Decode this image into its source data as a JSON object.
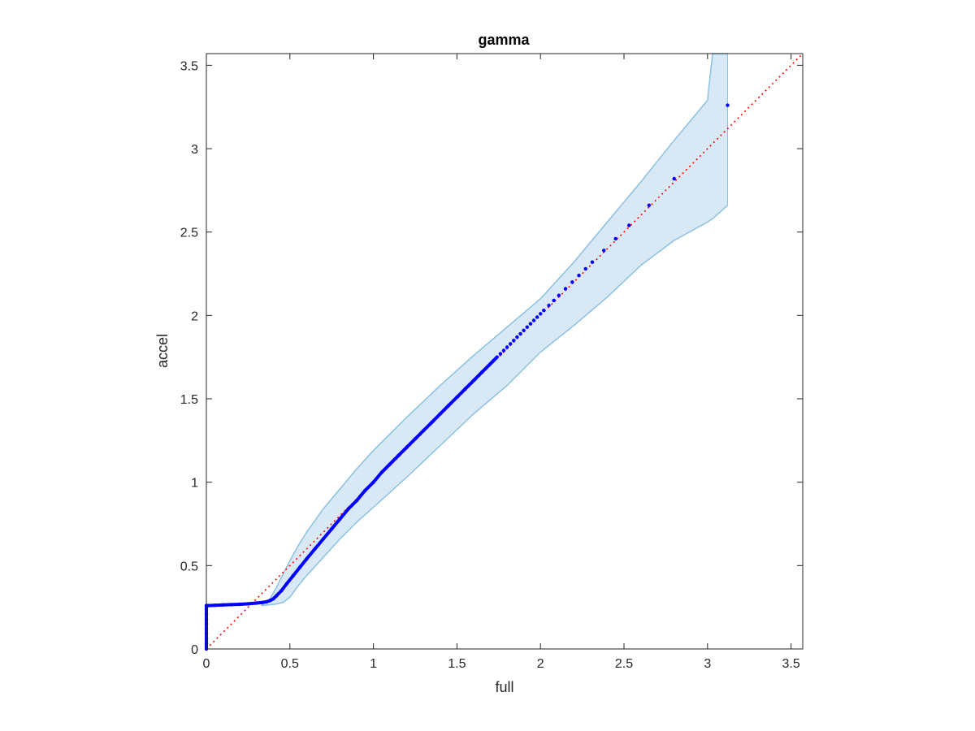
{
  "chart_data": {
    "type": "scatter",
    "title": "gamma",
    "xlabel": "full",
    "ylabel": "accel",
    "xlim": [
      0,
      3.57
    ],
    "ylim": [
      0,
      3.57
    ],
    "xticks": [
      0,
      0.5,
      1,
      1.5,
      2,
      2.5,
      3,
      3.5
    ],
    "yticks": [
      0,
      0.5,
      1,
      1.5,
      2,
      2.5,
      3,
      3.5
    ],
    "xtick_labels": [
      "0",
      "0.5",
      "1",
      "1.5",
      "2",
      "2.5",
      "3",
      "3.5"
    ],
    "ytick_labels": [
      "0",
      "0.5",
      "1",
      "1.5",
      "2",
      "2.5",
      "3",
      "3.5"
    ],
    "grid": false,
    "colors": {
      "points": "#0000ff",
      "band_fill": "#d8e8f4",
      "band_edge": "#8cc0e0",
      "reference": "#ff0000",
      "axes": "#262626"
    },
    "reference_line": {
      "x": [
        0,
        3.57
      ],
      "y": [
        0,
        3.57
      ],
      "style": "dotted"
    },
    "band": {
      "x": [
        0.33,
        0.38,
        0.42,
        0.46,
        0.5,
        0.55,
        0.6,
        0.7,
        0.8,
        0.9,
        1.0,
        1.2,
        1.4,
        1.6,
        1.8,
        2.0,
        2.2,
        2.4,
        2.6,
        2.8,
        3.0,
        3.03,
        3.12
      ],
      "upper": [
        0.26,
        0.3,
        0.37,
        0.45,
        0.53,
        0.62,
        0.7,
        0.84,
        0.96,
        1.08,
        1.19,
        1.39,
        1.58,
        1.76,
        1.93,
        2.1,
        2.32,
        2.56,
        2.8,
        3.05,
        3.29,
        3.57,
        3.57
      ],
      "lower": [
        0.26,
        0.265,
        0.27,
        0.28,
        0.31,
        0.38,
        0.44,
        0.55,
        0.66,
        0.76,
        0.85,
        1.03,
        1.22,
        1.41,
        1.58,
        1.78,
        1.94,
        2.11,
        2.3,
        2.45,
        2.56,
        2.58,
        2.66
      ]
    },
    "series": [
      {
        "x": [
          0,
          0,
          0,
          0,
          0,
          0,
          0,
          0,
          0,
          0,
          0.01,
          0.05,
          0.1,
          0.15,
          0.2,
          0.25,
          0.3,
          0.33,
          0.36,
          0.38,
          0.4,
          0.42,
          0.45,
          0.48,
          0.52,
          0.56,
          0.6,
          0.65,
          0.7,
          0.75,
          0.8,
          0.85,
          0.9,
          0.95,
          1.0,
          1.05,
          1.1,
          1.15,
          1.2,
          1.25,
          1.3,
          1.35,
          1.4,
          1.45,
          1.5,
          1.55,
          1.6,
          1.65,
          1.7,
          1.72,
          1.74,
          1.76,
          1.78,
          1.8,
          1.82,
          1.84,
          1.86,
          1.88,
          1.9,
          1.92,
          1.94,
          1.96,
          1.98,
          2.0,
          2.02,
          2.05,
          2.08,
          2.11,
          2.15,
          2.19,
          2.23,
          2.27,
          2.31,
          2.38,
          2.45,
          2.53,
          2.65,
          2.8,
          3.12
        ],
        "y": [
          0,
          0.03,
          0.06,
          0.09,
          0.12,
          0.15,
          0.18,
          0.21,
          0.24,
          0.26,
          0.26,
          0.262,
          0.264,
          0.266,
          0.268,
          0.271,
          0.275,
          0.278,
          0.283,
          0.29,
          0.3,
          0.32,
          0.35,
          0.39,
          0.44,
          0.49,
          0.54,
          0.6,
          0.66,
          0.72,
          0.78,
          0.84,
          0.89,
          0.95,
          1.0,
          1.06,
          1.11,
          1.16,
          1.21,
          1.26,
          1.31,
          1.36,
          1.41,
          1.46,
          1.51,
          1.56,
          1.61,
          1.66,
          1.71,
          1.73,
          1.75,
          1.77,
          1.79,
          1.81,
          1.83,
          1.85,
          1.87,
          1.89,
          1.91,
          1.93,
          1.95,
          1.97,
          1.99,
          2.01,
          2.03,
          2.06,
          2.09,
          2.12,
          2.16,
          2.2,
          2.24,
          2.28,
          2.32,
          2.39,
          2.46,
          2.54,
          2.66,
          2.82,
          3.26
        ]
      }
    ]
  }
}
